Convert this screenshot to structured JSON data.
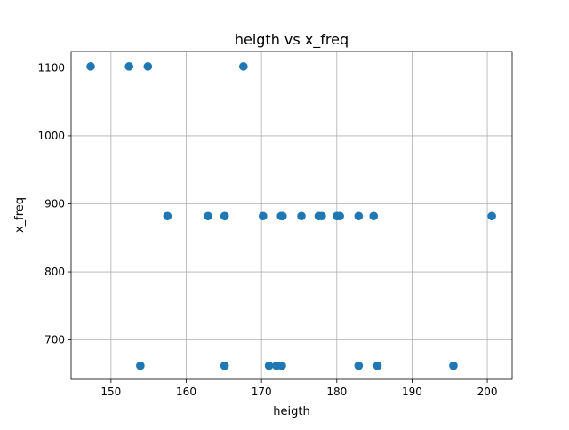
{
  "chart_data": {
    "type": "scatter",
    "title": "heigth vs x_freq",
    "xlabel": "heigth",
    "ylabel": "x_freq",
    "xlim": [
      144.7,
      203.3
    ],
    "ylim": [
      642,
      1124
    ],
    "xticks": [
      150,
      160,
      170,
      180,
      190,
      200
    ],
    "yticks": [
      700,
      800,
      900,
      1000,
      1100
    ],
    "xtick_labels": [
      "150",
      "160",
      "170",
      "180",
      "190",
      "200"
    ],
    "ytick_labels": [
      "700",
      "800",
      "900",
      "1000",
      "1100"
    ],
    "grid": true,
    "marker_color": "#1f77b4",
    "points": [
      {
        "x": 147.3,
        "y": 1102
      },
      {
        "x": 152.4,
        "y": 1102
      },
      {
        "x": 154.9,
        "y": 1102
      },
      {
        "x": 167.6,
        "y": 1102
      },
      {
        "x": 157.5,
        "y": 882
      },
      {
        "x": 162.9,
        "y": 882
      },
      {
        "x": 165.1,
        "y": 882
      },
      {
        "x": 170.2,
        "y": 882
      },
      {
        "x": 172.6,
        "y": 882
      },
      {
        "x": 172.8,
        "y": 882
      },
      {
        "x": 175.3,
        "y": 882
      },
      {
        "x": 177.6,
        "y": 882
      },
      {
        "x": 178.0,
        "y": 882
      },
      {
        "x": 180.0,
        "y": 882
      },
      {
        "x": 180.4,
        "y": 882
      },
      {
        "x": 182.9,
        "y": 882
      },
      {
        "x": 184.9,
        "y": 882
      },
      {
        "x": 200.6,
        "y": 882
      },
      {
        "x": 153.9,
        "y": 662
      },
      {
        "x": 165.1,
        "y": 662
      },
      {
        "x": 171.0,
        "y": 662
      },
      {
        "x": 172.0,
        "y": 662
      },
      {
        "x": 172.7,
        "y": 662
      },
      {
        "x": 182.9,
        "y": 662
      },
      {
        "x": 185.4,
        "y": 662
      },
      {
        "x": 195.5,
        "y": 662
      }
    ]
  }
}
